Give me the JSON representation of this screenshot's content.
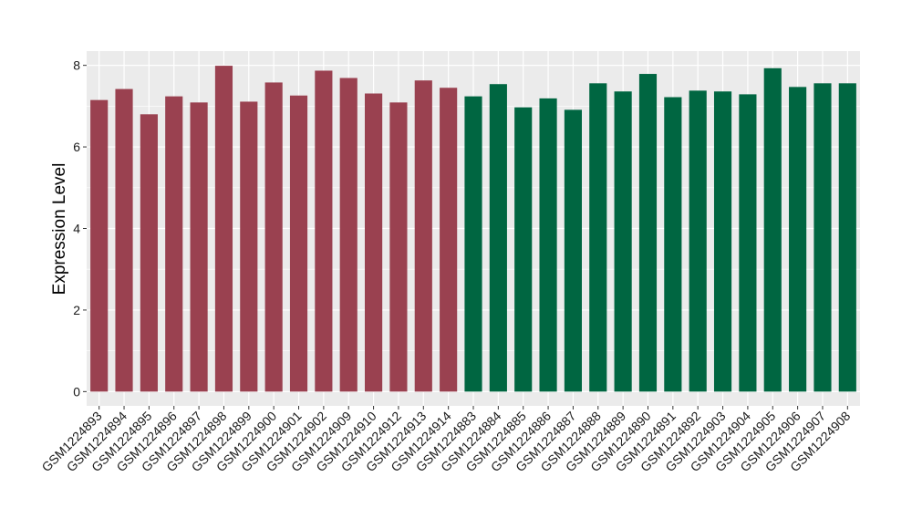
{
  "chart_data": {
    "type": "bar",
    "title": "",
    "xlabel": "",
    "ylabel": "Expression Level",
    "ylim": [
      -0.35,
      8.35
    ],
    "yticks": [
      0,
      2,
      4,
      6,
      8
    ],
    "grid": true,
    "legend": "none",
    "colors": {
      "group1": "#9a4150",
      "group2": "#006641",
      "panel_bg": "#ebebeb",
      "grid": "#ffffff"
    },
    "categories": [
      "GSM1224893",
      "GSM1224894",
      "GSM1224895",
      "GSM1224896",
      "GSM1224897",
      "GSM1224898",
      "GSM1224899",
      "GSM1224900",
      "GSM1224901",
      "GSM1224902",
      "GSM1224909",
      "GSM1224910",
      "GSM1224912",
      "GSM1224913",
      "GSM1224914",
      "GSM1224883",
      "GSM1224884",
      "GSM1224885",
      "GSM1224886",
      "GSM1224887",
      "GSM1224888",
      "GSM1224889",
      "GSM1224890",
      "GSM1224891",
      "GSM1224892",
      "GSM1224903",
      "GSM1224904",
      "GSM1224905",
      "GSM1224906",
      "GSM1224907",
      "GSM1224908"
    ],
    "values": [
      7.15,
      7.42,
      6.8,
      7.24,
      7.09,
      7.99,
      7.11,
      7.58,
      7.26,
      7.87,
      7.69,
      7.31,
      7.09,
      7.63,
      7.45,
      7.24,
      7.54,
      6.97,
      7.19,
      6.91,
      7.56,
      7.36,
      7.79,
      7.22,
      7.38,
      7.36,
      7.29,
      7.93,
      7.47,
      7.56,
      7.56
    ],
    "groups": [
      1,
      1,
      1,
      1,
      1,
      1,
      1,
      1,
      1,
      1,
      1,
      1,
      1,
      1,
      1,
      2,
      2,
      2,
      2,
      2,
      2,
      2,
      2,
      2,
      2,
      2,
      2,
      2,
      2,
      2,
      2
    ]
  }
}
